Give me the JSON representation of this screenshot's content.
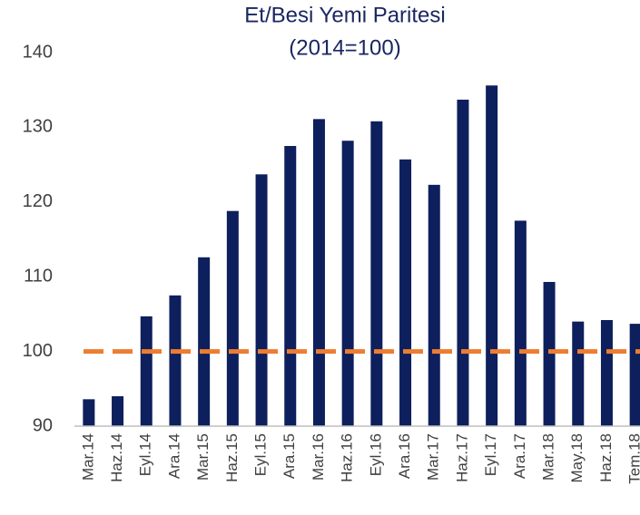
{
  "chart_data": {
    "type": "bar",
    "title": "Et/Besi Yemi Paritesi",
    "subtitle": "(2014=100)",
    "categories": [
      "Mar.14",
      "Haz.14",
      "Eyl.14",
      "Ara.14",
      "Mar.15",
      "Haz.15",
      "Eyl.15",
      "Ara.15",
      "Mar.16",
      "Haz.16",
      "Eyl.16",
      "Ara.16",
      "Mar.17",
      "Haz.17",
      "Eyl.17",
      "Ara.17",
      "Mar.18",
      "May.18",
      "Haz.18",
      "Tem.18"
    ],
    "values": [
      93.6,
      94.0,
      104.7,
      107.5,
      112.6,
      118.8,
      123.7,
      127.5,
      131.1,
      128.2,
      130.8,
      125.7,
      122.3,
      133.7,
      135.6,
      117.5,
      109.3,
      104.0,
      104.2,
      103.7
    ],
    "color": "#0d1f5c",
    "reference_line": {
      "value": 100,
      "color": "#ed7d31",
      "style": "dashed"
    },
    "ylim": [
      90,
      140
    ],
    "yticks": [
      90,
      100,
      110,
      120,
      130,
      140
    ],
    "grid": false
  }
}
